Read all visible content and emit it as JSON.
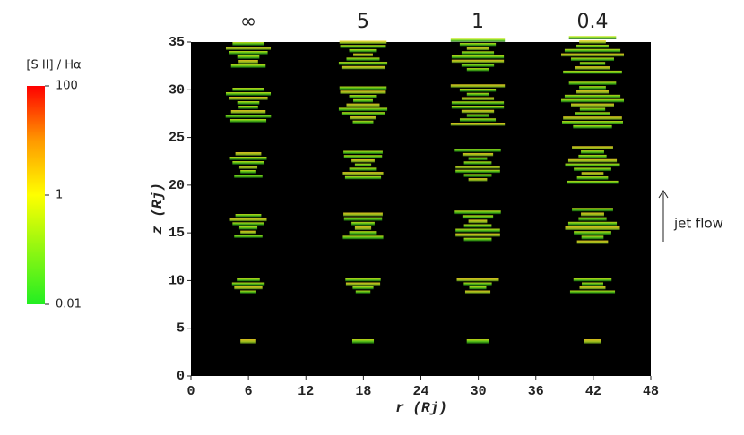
{
  "chart_data": {
    "type": "image",
    "panel_titles": [
      "∞",
      "5",
      "1",
      "0.4"
    ],
    "xlabel": "r (Rj)",
    "ylabel": "z (Rj)",
    "xlim": [
      0,
      48
    ],
    "xticks": [
      0,
      6,
      12,
      18,
      24,
      30,
      36,
      42,
      48
    ],
    "ylim": [
      0,
      35
    ],
    "yticks": [
      0,
      5,
      10,
      15,
      20,
      25,
      30,
      35
    ],
    "colorbar": {
      "label": "[S II] / Hα",
      "scale": "log",
      "lim": [
        0.01,
        100
      ],
      "ticks": [
        0.01,
        1,
        100
      ]
    },
    "annotation": "jet flow"
  }
}
